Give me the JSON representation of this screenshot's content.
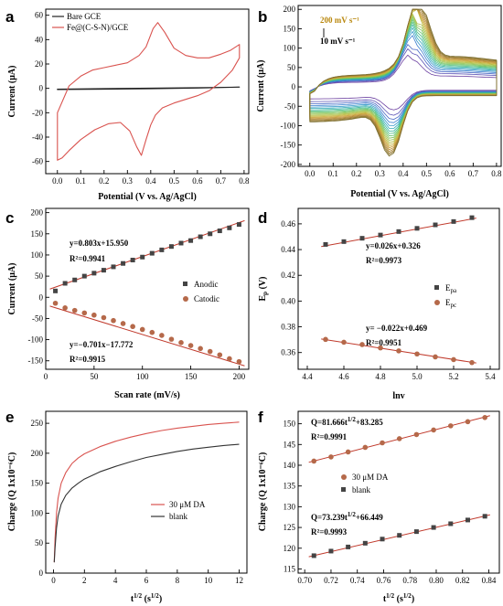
{
  "colors": {
    "red": "#d9534f",
    "black": "#222222",
    "fit": "#c0392b",
    "anodic": "#444444",
    "catodic": "#b5694a",
    "gold": "#b8860b"
  },
  "chart_data": [
    {
      "id": "a",
      "type": "line",
      "panel_label": "a",
      "xlabel": "Potential (V vs. Ag/AgCl)",
      "ylabel": "Current (μA)",
      "xlim": [
        -0.05,
        0.82
      ],
      "ylim": [
        -70,
        65
      ],
      "xticks": [
        0.0,
        0.1,
        0.2,
        0.3,
        0.4,
        0.5,
        0.6,
        0.7,
        0.8
      ],
      "xtick_labels": [
        "0.0",
        "0.1",
        "0.2",
        "0.3",
        "0.4",
        "0.5",
        "0.6",
        "0.7",
        "0.8"
      ],
      "yticks": [
        -60,
        -40,
        -20,
        0,
        20,
        40,
        60
      ],
      "legend": "top-left",
      "series": [
        {
          "name": "Bare GCE",
          "color": "#222222",
          "x": [
            0.0,
            0.2,
            0.4,
            0.6,
            0.78,
            0.6,
            0.4,
            0.2,
            0.0
          ],
          "y": [
            -1,
            -0.7,
            -0.3,
            0.3,
            1,
            0.6,
            0.2,
            -0.2,
            -0.6
          ]
        },
        {
          "name": "Fe@(C-S-N)/GCE",
          "color": "#d9534f",
          "x": [
            0.0,
            0.05,
            0.1,
            0.15,
            0.2,
            0.25,
            0.3,
            0.35,
            0.38,
            0.41,
            0.43,
            0.46,
            0.5,
            0.55,
            0.6,
            0.65,
            0.7,
            0.74,
            0.78,
            0.78,
            0.75,
            0.7,
            0.65,
            0.6,
            0.55,
            0.5,
            0.45,
            0.42,
            0.4,
            0.38,
            0.36,
            0.34,
            0.31,
            0.27,
            0.22,
            0.16,
            0.1,
            0.05,
            0.02,
            0.0
          ],
          "y": [
            -20,
            2,
            10,
            15,
            17,
            19,
            21,
            27,
            34,
            49,
            54,
            46,
            33,
            27,
            25,
            25,
            28,
            31,
            36,
            25,
            15,
            5,
            -2,
            -6,
            -9,
            -12,
            -16,
            -22,
            -30,
            -42,
            -55,
            -48,
            -35,
            -28,
            -29,
            -34,
            -42,
            -51,
            -57,
            -59
          ]
        }
      ]
    },
    {
      "id": "b",
      "type": "line",
      "panel_label": "b",
      "xlabel": "Potential (V vs. Ag/AgCl)",
      "ylabel": "Current (μA)",
      "xlim": [
        -0.05,
        0.82
      ],
      "ylim": [
        -205,
        210
      ],
      "xticks": [
        0.0,
        0.1,
        0.2,
        0.3,
        0.4,
        0.5,
        0.6,
        0.7,
        0.8
      ],
      "xtick_labels": [
        "0.0",
        "0.1",
        "0.2",
        "0.3",
        "0.4",
        "0.5",
        "0.6",
        "0.7",
        "0.8"
      ],
      "yticks": [
        -200,
        -150,
        -100,
        -50,
        0,
        50,
        100,
        150,
        200
      ],
      "scan_rate_range": [
        10,
        200
      ],
      "scan_rate_step": 10,
      "annotations": [
        {
          "text": "200 mV s⁻¹",
          "color": "#b8860b"
        },
        {
          "text": "10  mV s⁻¹",
          "color": "#000000"
        }
      ]
    },
    {
      "id": "c",
      "type": "scatter",
      "panel_label": "c",
      "xlabel": "Scan rate (mV/s)",
      "ylabel": "Current (μA)",
      "xlim": [
        0,
        210
      ],
      "ylim": [
        -170,
        210
      ],
      "xticks": [
        0,
        50,
        100,
        150,
        200
      ],
      "yticks": [
        -150,
        -100,
        -50,
        0,
        50,
        100,
        150,
        200
      ],
      "legend": "right",
      "series": [
        {
          "name": "Anodic",
          "color": "#444444",
          "marker": "square",
          "x": [
            10,
            20,
            30,
            40,
            50,
            60,
            70,
            80,
            90,
            100,
            110,
            120,
            130,
            140,
            150,
            160,
            170,
            180,
            190,
            200
          ],
          "y": [
            15,
            33,
            41,
            50,
            57,
            64,
            72,
            80,
            88,
            95,
            104,
            112,
            120,
            128,
            134,
            143,
            150,
            157,
            164,
            172
          ]
        },
        {
          "name": "Catodic",
          "color": "#b5694a",
          "marker": "circle",
          "x": [
            10,
            20,
            30,
            40,
            50,
            60,
            70,
            80,
            90,
            100,
            110,
            120,
            130,
            140,
            150,
            160,
            170,
            180,
            190,
            200
          ],
          "y": [
            -14,
            -25,
            -31,
            -37,
            -42,
            -48,
            -55,
            -62,
            -69,
            -76,
            -83,
            -90,
            -99,
            -107,
            -114,
            -121,
            -128,
            -136,
            -145,
            -152
          ]
        }
      ],
      "fits": [
        {
          "slope": 0.803,
          "intercept": 15.95,
          "color": "#c0392b"
        },
        {
          "slope": -0.701,
          "intercept": -17.772,
          "color": "#c0392b"
        }
      ],
      "annotations": [
        "y=0.803x+15.950",
        "R²=0.9941",
        "y=−0.701x−17.772",
        "R²=0.9915"
      ]
    },
    {
      "id": "d",
      "type": "scatter",
      "panel_label": "d",
      "xlabel": "lnv",
      "ylabel": "Ep (V)",
      "xlim": [
        4.35,
        5.45
      ],
      "ylim": [
        0.347,
        0.472
      ],
      "xticks": [
        4.4,
        4.6,
        4.8,
        5.0,
        5.2,
        5.4
      ],
      "xtick_labels": [
        "4.4",
        "4.6",
        "4.8",
        "5.0",
        "5.2",
        "5.4"
      ],
      "yticks": [
        0.36,
        0.38,
        0.4,
        0.42,
        0.44,
        0.46
      ],
      "ytick_labels": [
        "0.36",
        "0.38",
        "0.40",
        "0.42",
        "0.44",
        "0.46"
      ],
      "legend": "right",
      "series": [
        {
          "name": "Epa",
          "color": "#444444",
          "marker": "square",
          "x": [
            4.5,
            4.6,
            4.7,
            4.8,
            4.9,
            5.0,
            5.1,
            5.2,
            5.3
          ],
          "y": [
            0.444,
            0.4462,
            0.4488,
            0.4513,
            0.454,
            0.4565,
            0.4592,
            0.4618,
            0.4648
          ]
        },
        {
          "name": "Epc",
          "color": "#b5694a",
          "marker": "circle",
          "x": [
            4.5,
            4.6,
            4.7,
            4.8,
            4.9,
            5.0,
            5.1,
            5.2,
            5.3
          ],
          "y": [
            0.3702,
            0.368,
            0.3662,
            0.3636,
            0.3613,
            0.3589,
            0.3566,
            0.3545,
            0.3522
          ]
        }
      ],
      "fits": [
        {
          "slope": 0.026,
          "intercept": 0.326,
          "color": "#c0392b"
        },
        {
          "slope": -0.022,
          "intercept": 0.469,
          "color": "#c0392b"
        }
      ],
      "annotations": [
        "y=0.026x+0.326",
        "R²=0.9973",
        "y= −0.022x+0.469",
        "R²=0.9951"
      ]
    },
    {
      "id": "e",
      "type": "line",
      "panel_label": "e",
      "xlabel": "t1/2 (s1/2)",
      "ylabel": "Charge (Q 1x10⁻⁶C)",
      "xlim": [
        -0.5,
        12.5
      ],
      "ylim": [
        0,
        270
      ],
      "xticks": [
        0,
        2,
        4,
        6,
        8,
        10,
        12
      ],
      "yticks": [
        0,
        50,
        100,
        150,
        200,
        250
      ],
      "legend": "center-right",
      "series": [
        {
          "name": "30 μM DA",
          "color": "#d9534f",
          "x": [
            0.05,
            0.1,
            0.2,
            0.3,
            0.5,
            0.8,
            1.2,
            1.6,
            2,
            3,
            4,
            5,
            6,
            7,
            8,
            9,
            10,
            11,
            12
          ],
          "y": [
            18,
            58,
            100,
            125,
            150,
            168,
            183,
            192,
            199,
            211,
            220,
            227,
            233,
            238,
            242,
            245,
            248,
            250,
            252
          ]
        },
        {
          "name": "blank",
          "color": "#333333",
          "x": [
            0.05,
            0.1,
            0.2,
            0.3,
            0.5,
            0.8,
            1.2,
            1.6,
            2,
            3,
            4,
            5,
            6,
            7,
            8,
            9,
            10,
            11,
            12
          ],
          "y": [
            18,
            42,
            75,
            95,
            115,
            130,
            142,
            150,
            157,
            169,
            178,
            186,
            193,
            198,
            203,
            207,
            210,
            213,
            215
          ]
        }
      ]
    },
    {
      "id": "f",
      "type": "scatter",
      "panel_label": "f",
      "xlabel": "t1/2 (s1/2)",
      "ylabel": "Charge (Q 1x10⁻⁶C)",
      "xlim": [
        0.695,
        0.848
      ],
      "ylim": [
        114,
        153
      ],
      "xticks": [
        0.7,
        0.72,
        0.74,
        0.76,
        0.78,
        0.8,
        0.82,
        0.84
      ],
      "xtick_labels": [
        "0.70",
        "0.72",
        "0.74",
        "0.76",
        "0.78",
        "0.80",
        "0.82",
        "0.84"
      ],
      "yticks": [
        115,
        120,
        125,
        130,
        135,
        140,
        145,
        150
      ],
      "legend": "center",
      "series": [
        {
          "name": "30 μM DA",
          "color": "#b5694a",
          "marker": "circle",
          "x": [
            0.707,
            0.72,
            0.733,
            0.746,
            0.759,
            0.772,
            0.785,
            0.798,
            0.811,
            0.824,
            0.837
          ],
          "y": [
            141.0,
            142.0,
            143.2,
            144.3,
            145.4,
            146.4,
            147.4,
            148.5,
            149.5,
            150.5,
            151.5
          ]
        },
        {
          "name": "blank",
          "color": "#444444",
          "marker": "square",
          "x": [
            0.707,
            0.72,
            0.733,
            0.746,
            0.759,
            0.772,
            0.785,
            0.798,
            0.811,
            0.824,
            0.837
          ],
          "y": [
            118.2,
            119.3,
            120.3,
            121.2,
            122.2,
            123.1,
            124.0,
            125.0,
            125.9,
            126.8,
            127.7
          ]
        }
      ],
      "fits": [
        {
          "slope": 81.666,
          "intercept": 83.285,
          "color": "#c0392b"
        },
        {
          "slope": 73.239,
          "intercept": 66.449,
          "color": "#c0392b"
        }
      ],
      "annotations": [
        "Q=81.666t1/2+83.285",
        "R²=0.9991",
        "Q=73.239t1/2+66.449",
        "R²=0.9993"
      ]
    }
  ]
}
